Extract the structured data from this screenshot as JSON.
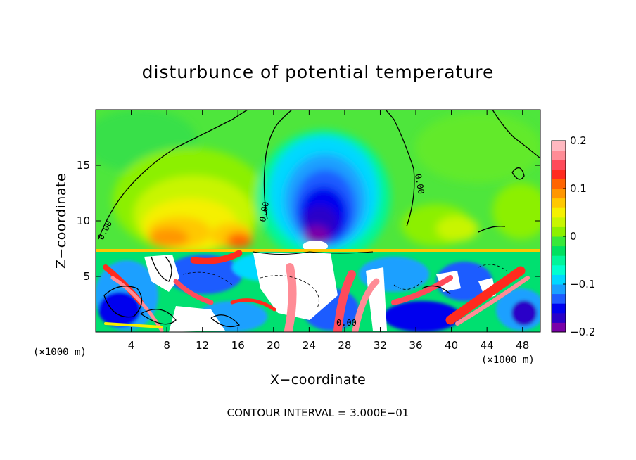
{
  "chart_data": {
    "type": "heatmap",
    "title": "disturbunce of potential temperature",
    "xlabel": "X−coordinate",
    "ylabel": "Z−coordinate",
    "x_unit": "(×1000 m)",
    "xlim": [
      0,
      50
    ],
    "ylim": [
      0,
      20
    ],
    "x_ticks": [
      4,
      8,
      12,
      16,
      20,
      24,
      28,
      32,
      36,
      40,
      44,
      48
    ],
    "y_ticks": [
      5,
      10,
      15
    ],
    "colorbar": {
      "range": [
        -0.2,
        0.2
      ],
      "ticks": [
        "0.2",
        "0.1",
        "0",
        "−0.1",
        "−0.2"
      ],
      "colors": [
        "#7a00a8",
        "#2a00c8",
        "#0000ee",
        "#1e5cff",
        "#1aa0ff",
        "#00d8ff",
        "#00ffd0",
        "#00f59a",
        "#00e060",
        "#38e83a",
        "#8cf000",
        "#c8f500",
        "#f5f000",
        "#ffc800",
        "#ff9600",
        "#ff6400",
        "#ff2a1e",
        "#ff4a5a",
        "#ff8c96",
        "#ffb8c0"
      ]
    },
    "contour_labels": [
      "0.00",
      "0.00",
      "0.00",
      "0.00"
    ],
    "note": "CONTOUR INTERVAL = 3.000E−01"
  }
}
